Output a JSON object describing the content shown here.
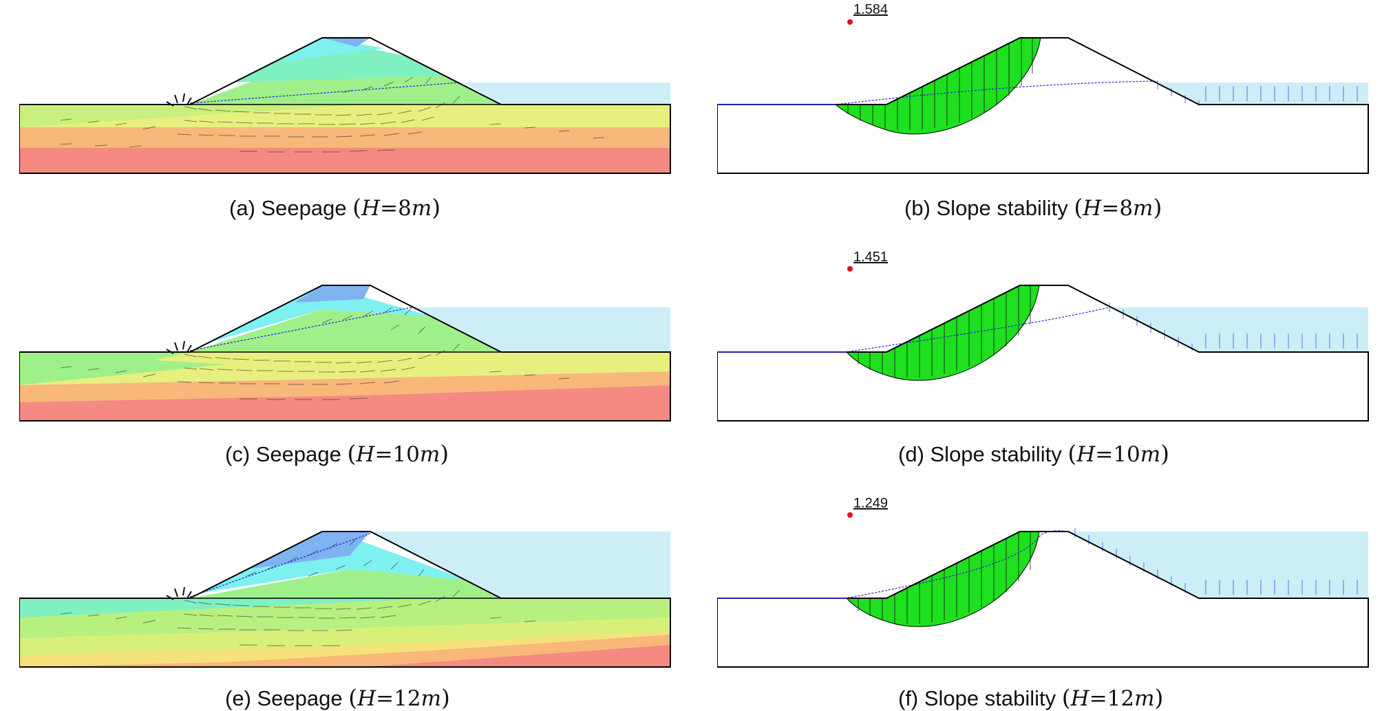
{
  "figures": [
    {
      "id": "a",
      "caption_prefix": "(a) Seepage",
      "h_var": "H",
      "eq": "=",
      "h_value": "8",
      "h_unit": "m"
    },
    {
      "id": "b",
      "caption_prefix": "(b) Slope stability",
      "h_var": "H",
      "eq": "=",
      "h_value": "8",
      "h_unit": "m",
      "fos": "1.584"
    },
    {
      "id": "c",
      "caption_prefix": "(c) Seepage",
      "h_var": "H",
      "eq": "=",
      "h_value": "10",
      "h_unit": "m"
    },
    {
      "id": "d",
      "caption_prefix": "(d) Slope stability",
      "h_var": "H",
      "eq": "=",
      "h_value": "10",
      "h_unit": "m",
      "fos": "1.451"
    },
    {
      "id": "e",
      "caption_prefix": "(e) Seepage",
      "h_var": "H",
      "eq": "=",
      "h_value": "12",
      "h_unit": "m"
    },
    {
      "id": "f",
      "caption_prefix": "(f) Slope stability",
      "h_var": "H",
      "eq": "=",
      "h_value": "12",
      "h_unit": "m",
      "fos": "1.249"
    }
  ],
  "colors": {
    "water": "#cdeef7",
    "slip_mass": "#1ee01e",
    "phreatic_line": "#2222dd",
    "contour_scale": [
      "#7fb2f0",
      "#7ff0f0",
      "#7ff0c0",
      "#9ff08a",
      "#d8f07a",
      "#f5e27a",
      "#f7b87a",
      "#f58a82"
    ],
    "fos_marker": "#e0121b"
  }
}
